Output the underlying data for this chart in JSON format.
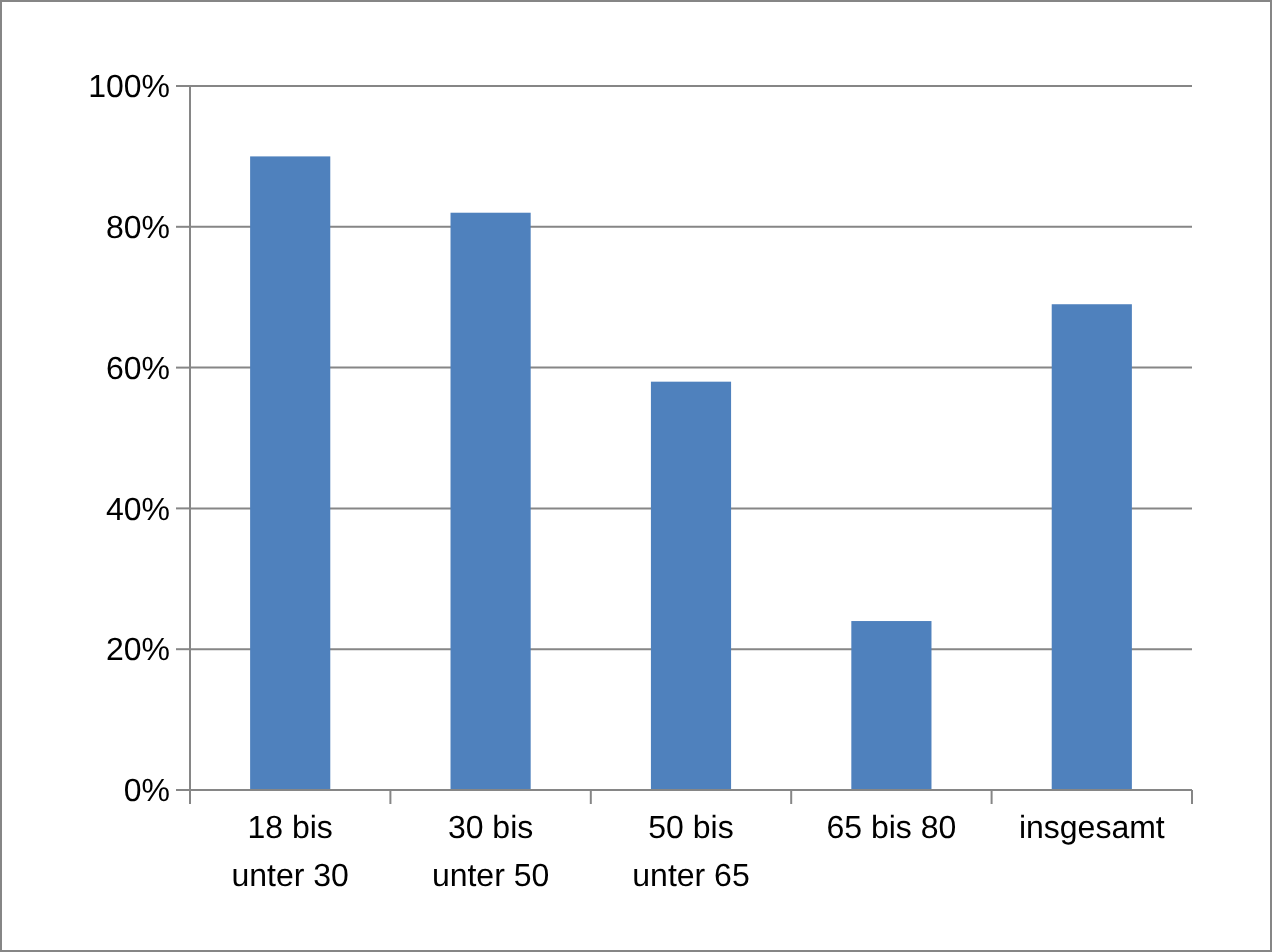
{
  "chart_data": {
    "type": "bar",
    "categories": [
      "18 bis unter 30",
      "30 bis unter 50",
      "50 bis unter 65",
      "65 bis 80",
      "insgesamt"
    ],
    "values": [
      90,
      82,
      58,
      24,
      69
    ],
    "color": "#4f81bd",
    "ylim": [
      0,
      100
    ],
    "yticks": [
      {
        "value": 0,
        "label": "0%"
      },
      {
        "value": 20,
        "label": "20%"
      },
      {
        "value": 40,
        "label": "40%"
      },
      {
        "value": 60,
        "label": "60%"
      },
      {
        "value": 80,
        "label": "80%"
      },
      {
        "value": 100,
        "label": "100%"
      }
    ],
    "grid": "y"
  }
}
